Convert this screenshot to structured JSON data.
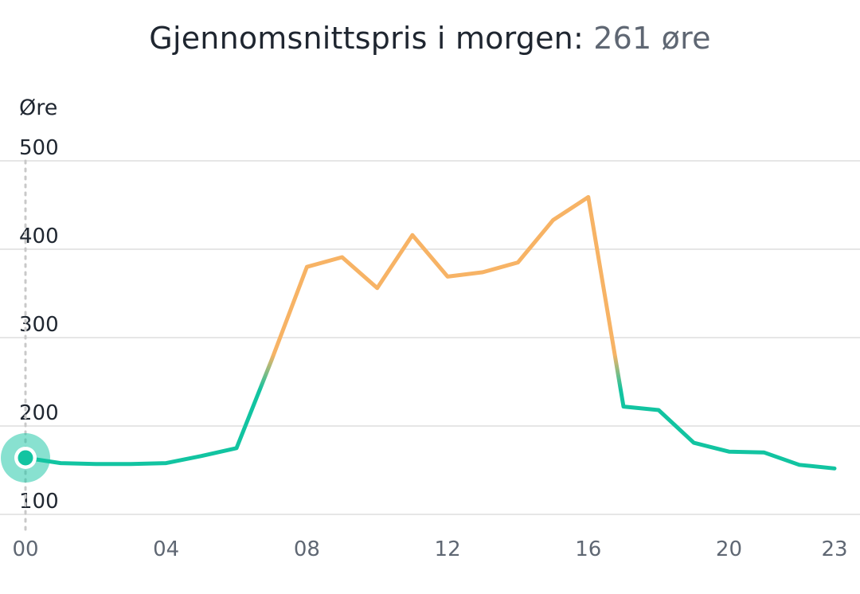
{
  "header": {
    "title_text": "Gjennomsnittspris i morgen:",
    "title_value": "261 øre"
  },
  "chart_data": {
    "type": "line",
    "title": "Gjennomsnittspris i morgen: 261 øre",
    "ylabel": "Øre",
    "xlabel": "",
    "ylim": [
      100,
      500
    ],
    "yticks": [
      500,
      400,
      300,
      200,
      100
    ],
    "xlim": [
      0,
      23
    ],
    "xtick_labels": [
      "00",
      "04",
      "08",
      "12",
      "16",
      "20",
      "23"
    ],
    "xtick_values": [
      0,
      4,
      8,
      12,
      16,
      20,
      23
    ],
    "grid": true,
    "threshold": 261,
    "colors": {
      "below": "#12c4a1",
      "above": "#f7b365",
      "grid": "#e6e6e6",
      "axis_dots": "#c9c9c9"
    },
    "selected_hour": 0,
    "series": [
      {
        "x": [
          0,
          1,
          2,
          3,
          4,
          5,
          6,
          7,
          8,
          9,
          10,
          11,
          12,
          13,
          14,
          15,
          16,
          17,
          18,
          19,
          20,
          21,
          22,
          23
        ],
        "values": [
          164,
          158,
          157,
          157,
          158,
          166,
          175,
          275,
          380,
          391,
          356,
          416,
          369,
          374,
          385,
          433,
          459,
          222,
          218,
          181,
          171,
          170,
          156,
          152
        ]
      }
    ]
  }
}
